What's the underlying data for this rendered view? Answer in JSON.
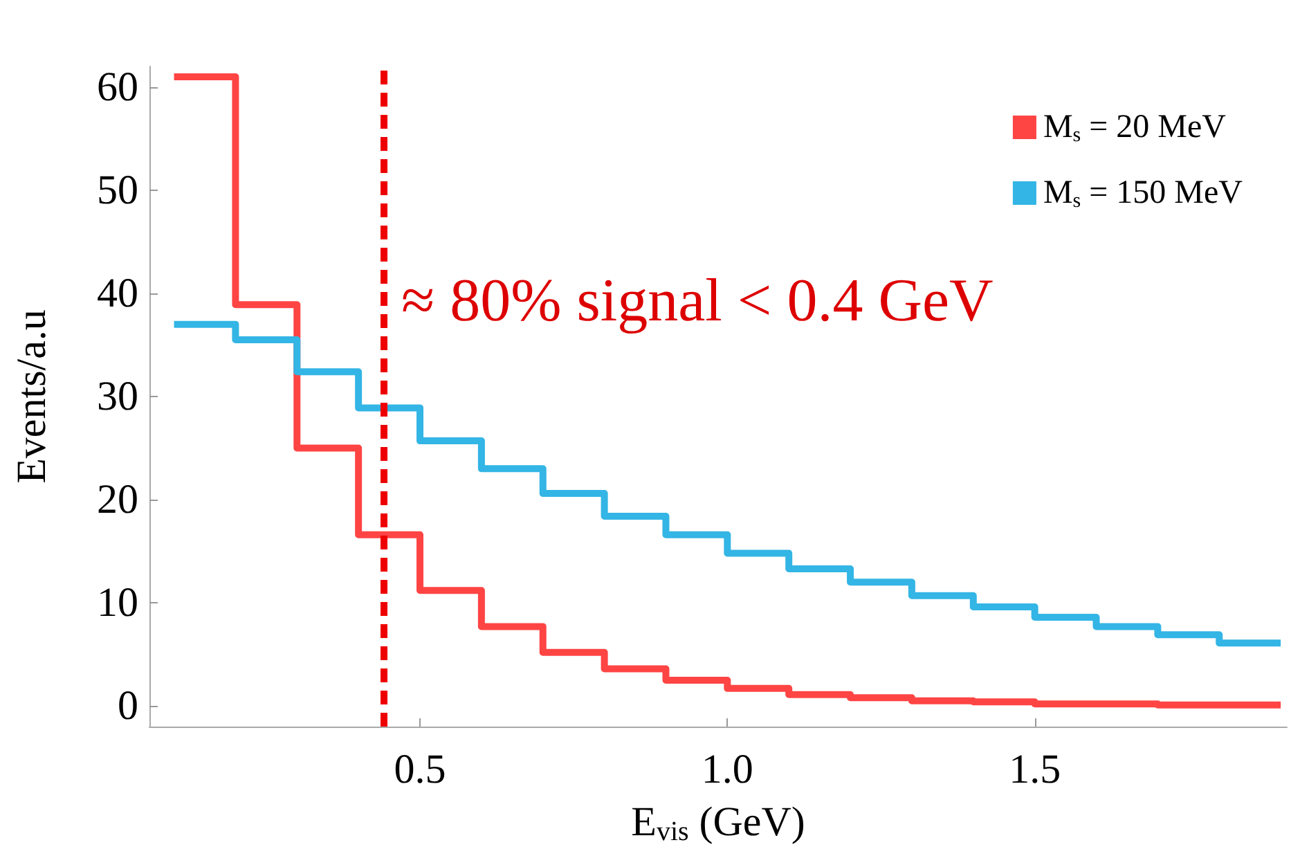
{
  "chart_data": {
    "type": "histogram",
    "xlabel": "E$_{vis}$ (GeV)",
    "ylabel": "Events/a.u",
    "bins": [
      0.1,
      0.2,
      0.3,
      0.4,
      0.5,
      0.6,
      0.7,
      0.8,
      0.9,
      1.0,
      1.1,
      1.2,
      1.3,
      1.4,
      1.5,
      1.6,
      1.7,
      1.8,
      1.9
    ],
    "series": [
      {
        "name": "M$_{s}$ = 20 MeV",
        "color": "#ff4444",
        "values": [
          61,
          38.9,
          25.0,
          16.6,
          11.2,
          7.7,
          5.2,
          3.6,
          2.5,
          1.7,
          1.1,
          0.8,
          0.5,
          0.4,
          0.2,
          0.2,
          0.1,
          0.1
        ]
      },
      {
        "name": "M$_{s}$ = 150 MeV",
        "color": "#33b5e5",
        "values": [
          37.0,
          35.5,
          32.4,
          28.9,
          25.7,
          23.0,
          20.6,
          18.4,
          16.6,
          14.8,
          13.3,
          12.0,
          10.7,
          9.6,
          8.6,
          7.7,
          6.9,
          6.1
        ]
      }
    ],
    "xlim": [
      0.06,
      1.91
    ],
    "ylim": [
      -2,
      62
    ],
    "xticks": [
      0.5,
      {
        "value": 1.0,
        "label": "1.0"
      },
      1.5
    ],
    "yticks": [
      0,
      10,
      20,
      30,
      40,
      50,
      60
    ],
    "ref_lines": [
      {
        "axis": "x",
        "value": 0.44,
        "color": "#ee0000",
        "line_style": "dotted"
      }
    ],
    "annotations": [
      "≈ 80% signal < 0.4 GeV"
    ],
    "grid": false,
    "legend": "top right"
  }
}
